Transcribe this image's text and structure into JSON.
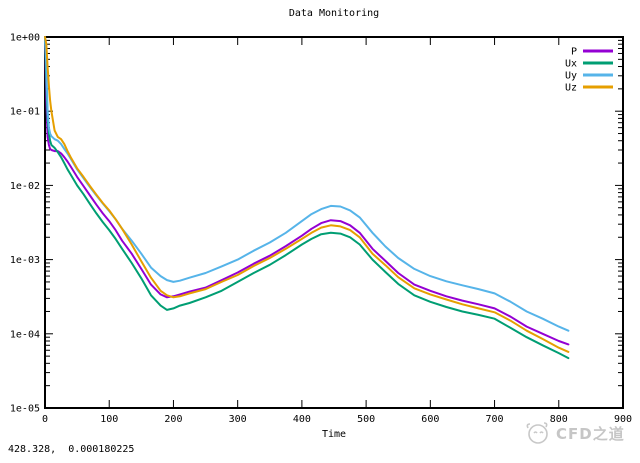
{
  "chart_data": {
    "type": "line",
    "title": "Data Monitoring",
    "xlabel": "Time",
    "ylabel": "",
    "grid": false,
    "legend_position": "top-right-inside",
    "x_axis": {
      "min": 0,
      "max": 900,
      "ticks": [
        0,
        100,
        200,
        300,
        400,
        500,
        600,
        700,
        800,
        900
      ]
    },
    "y_axis": {
      "scale": "log",
      "min": 1e-05,
      "max": 1,
      "tick_labels": [
        "1e+00",
        "1e-01",
        "1e-02",
        "1e-03",
        "1e-04",
        "1e-05"
      ]
    },
    "x": [
      0,
      2,
      4,
      6,
      8,
      10,
      15,
      20,
      25,
      30,
      35,
      40,
      50,
      60,
      70,
      80,
      90,
      100,
      110,
      120,
      135,
      150,
      165,
      180,
      190,
      200,
      210,
      225,
      250,
      275,
      300,
      325,
      350,
      375,
      400,
      415,
      430,
      445,
      460,
      475,
      490,
      510,
      530,
      550,
      575,
      600,
      625,
      650,
      675,
      700,
      725,
      750,
      775,
      800,
      815
    ],
    "series": [
      {
        "name": "P",
        "color": "#9400d3",
        "values": [
          1.0,
          0.15,
          0.045,
          0.035,
          0.031,
          0.03,
          0.029,
          0.029,
          0.027,
          0.024,
          0.021,
          0.018,
          0.013,
          0.0098,
          0.0073,
          0.0055,
          0.0042,
          0.0033,
          0.0025,
          0.0018,
          0.0012,
          0.00075,
          0.00046,
          0.00034,
          0.00031,
          0.00032,
          0.00034,
          0.00037,
          0.00042,
          0.00053,
          0.00067,
          0.00088,
          0.00113,
          0.00152,
          0.0021,
          0.0026,
          0.0031,
          0.0034,
          0.0033,
          0.0029,
          0.0023,
          0.0014,
          0.00096,
          0.00066,
          0.00046,
          0.00038,
          0.00032,
          0.00028,
          0.00025,
          0.00022,
          0.00017,
          0.000125,
          0.0001,
          8e-05,
          7.2e-05
        ]
      },
      {
        "name": "Ux",
        "color": "#009e73",
        "values": [
          1.0,
          0.25,
          0.08,
          0.05,
          0.04,
          0.035,
          0.032,
          0.028,
          0.024,
          0.02,
          0.0165,
          0.014,
          0.01,
          0.0076,
          0.0056,
          0.0042,
          0.0032,
          0.0025,
          0.0019,
          0.0014,
          0.0009,
          0.00056,
          0.00033,
          0.00024,
          0.00021,
          0.00022,
          0.00024,
          0.00026,
          0.00031,
          0.00038,
          0.0005,
          0.00066,
          0.00085,
          0.00115,
          0.0016,
          0.0019,
          0.0022,
          0.0023,
          0.00224,
          0.002,
          0.0016,
          0.001,
          0.00068,
          0.00047,
          0.00033,
          0.00027,
          0.00023,
          0.0002,
          0.00018,
          0.00016,
          0.00012,
          9e-05,
          7e-05,
          5.5e-05,
          4.7e-05
        ]
      },
      {
        "name": "Uy",
        "color": "#56b4e9",
        "values": [
          1.0,
          0.4,
          0.1,
          0.06,
          0.05,
          0.046,
          0.042,
          0.04,
          0.036,
          0.031,
          0.027,
          0.023,
          0.0165,
          0.0125,
          0.0095,
          0.0073,
          0.0057,
          0.0045,
          0.0035,
          0.0026,
          0.0018,
          0.0012,
          0.00078,
          0.0006,
          0.00053,
          0.0005,
          0.00052,
          0.00057,
          0.00066,
          0.00081,
          0.001,
          0.00132,
          0.0017,
          0.0023,
          0.0033,
          0.0041,
          0.0048,
          0.0053,
          0.0052,
          0.0046,
          0.0037,
          0.0023,
          0.0015,
          0.00105,
          0.00075,
          0.0006,
          0.00051,
          0.00045,
          0.0004,
          0.00035,
          0.00027,
          0.0002,
          0.00016,
          0.000125,
          0.00011
        ]
      },
      {
        "name": "Uz",
        "color": "#e69f00",
        "values": [
          1.0,
          0.8,
          0.4,
          0.22,
          0.14,
          0.1,
          0.055,
          0.045,
          0.042,
          0.036,
          0.029,
          0.024,
          0.017,
          0.013,
          0.0098,
          0.0075,
          0.0058,
          0.0046,
          0.0035,
          0.0026,
          0.0016,
          0.00095,
          0.00057,
          0.00038,
          0.00033,
          0.00031,
          0.00032,
          0.00035,
          0.0004,
          0.0005,
          0.00062,
          0.00082,
          0.00105,
          0.0014,
          0.0019,
          0.0023,
          0.0027,
          0.0029,
          0.0028,
          0.0025,
          0.002,
          0.0012,
          0.00084,
          0.00058,
          0.00041,
          0.00034,
          0.00029,
          0.00025,
          0.00022,
          0.000195,
          0.00015,
          0.00011,
          8.5e-05,
          6.5e-05,
          5.7e-05
        ]
      }
    ]
  },
  "status": {
    "mouse_coordinates": "428.328,  0.000180225"
  },
  "watermark": {
    "text": "CFD之道",
    "color": "#c6c6c6"
  },
  "colors": {
    "background": "#ffffff",
    "foreground": "#000000"
  }
}
